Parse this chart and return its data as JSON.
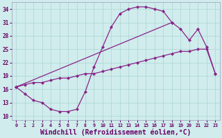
{
  "background_color": "#d0ecec",
  "line_color": "#882288",
  "grid_color": "#aad4d4",
  "xlabel": "Windchill (Refroidissement éolien,°C)",
  "xlabel_fontsize": 7.0,
  "ylabel_ticks": [
    10,
    13,
    16,
    19,
    22,
    25,
    28,
    31,
    34
  ],
  "xlabel_ticks": [
    0,
    1,
    2,
    3,
    4,
    5,
    6,
    7,
    8,
    9,
    10,
    11,
    12,
    13,
    14,
    15,
    16,
    17,
    18,
    19,
    20,
    21,
    22,
    23
  ],
  "xlim": [
    -0.5,
    23.5
  ],
  "ylim": [
    9.0,
    35.5
  ],
  "curve1_x": [
    0,
    1,
    2,
    3,
    4,
    5,
    6,
    7,
    8,
    9,
    10,
    11,
    12,
    13,
    14,
    15,
    16,
    17,
    18
  ],
  "curve1_y": [
    16.5,
    15.0,
    13.5,
    13.0,
    11.5,
    11.0,
    11.0,
    11.5,
    15.5,
    21.0,
    25.5,
    30.0,
    33.0,
    34.0,
    34.5,
    34.5,
    34.0,
    33.5,
    31.0
  ],
  "curve2_x": [
    0,
    1,
    2,
    3,
    4,
    5,
    6,
    7,
    8,
    9,
    10,
    11,
    12,
    13,
    14,
    15,
    16,
    17,
    18,
    19,
    20,
    21,
    22,
    23
  ],
  "curve2_y": [
    16.5,
    17.0,
    17.5,
    17.5,
    18.0,
    18.5,
    18.5,
    19.0,
    19.5,
    19.5,
    20.0,
    20.5,
    21.0,
    21.5,
    22.0,
    22.5,
    23.0,
    23.5,
    24.0,
    24.5,
    24.5,
    25.0,
    25.0,
    19.5
  ],
  "curve3_x": [
    0,
    18,
    19,
    20,
    21,
    22,
    23
  ],
  "curve3_y": [
    16.5,
    31.0,
    29.5,
    27.0,
    29.5,
    25.5,
    19.5
  ]
}
